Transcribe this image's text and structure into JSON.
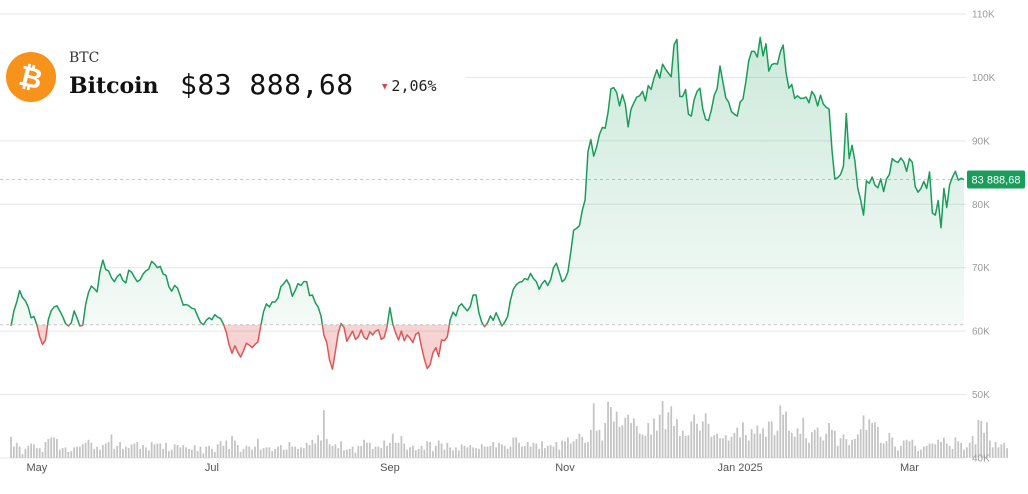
{
  "header": {
    "ticker": "BTC",
    "name": "Bitcoin",
    "price": "$83 888,68",
    "change": "2,06%",
    "change_direction": "down",
    "logo_color": "#F7931A",
    "logo_icon": "bitcoin-icon"
  },
  "colors": {
    "up_line": "#1a9c5b",
    "down_line": "#e05656",
    "up_fill": "#1a9c5b",
    "down_fill": "#e05656",
    "volume": "#c4c4c4",
    "grid": "#e6e6e6",
    "tag_bg": "#1a9c5b"
  },
  "chart_data": {
    "type": "line",
    "series": [
      {
        "values": [
          60.8,
          63.2,
          64.6,
          66.4,
          65.3,
          64.8,
          63.8,
          62.1,
          62.3,
          61.0,
          59.1,
          57.9,
          58.6,
          61.8,
          63.2,
          63.8,
          64.0,
          63.2,
          62.3,
          61.2,
          60.8,
          61.3,
          63.2,
          62.1,
          60.8,
          60.9,
          64.2,
          66.1,
          67.1,
          66.7,
          66.2,
          69.4,
          71.2,
          69.7,
          69.5,
          68.4,
          67.8,
          68.6,
          69.0,
          68.0,
          67.6,
          69.6,
          69.3,
          68.5,
          67.8,
          68.1,
          69.0,
          69.5,
          69.8,
          71.0,
          70.6,
          70.0,
          70.2,
          69.0,
          68.8,
          67.0,
          66.3,
          67.2,
          66.8,
          65.5,
          64.1,
          64.2,
          64.0,
          63.6,
          63.5,
          62.4,
          61.4,
          61.0,
          61.7,
          62.1,
          61.8,
          62.6,
          62.2,
          62.0,
          61.1,
          59.8,
          57.8,
          56.5,
          57.7,
          56.7,
          55.9,
          56.9,
          58.1,
          57.8,
          57.4,
          57.9,
          58.3,
          60.8,
          63.1,
          64.3,
          63.8,
          64.6,
          64.6,
          65.2,
          67.0,
          67.5,
          68.1,
          67.3,
          65.5,
          66.4,
          67.5,
          67.2,
          67.8,
          67.8,
          65.6,
          65.7,
          64.5,
          63.8,
          62.4,
          59.4,
          58.2,
          55.4,
          54.0,
          56.8,
          59.7,
          61.2,
          60.6,
          58.4,
          59.2,
          60.0,
          58.7,
          59.1,
          60.2,
          59.0,
          58.7,
          59.9,
          59.4,
          60.0,
          60.2,
          58.7,
          59.0,
          60.7,
          63.7,
          61.1,
          59.7,
          58.6,
          60.0,
          58.5,
          59.4,
          58.9,
          58.2,
          59.5,
          59.8,
          57.5,
          55.6,
          54.1,
          54.7,
          56.6,
          57.4,
          56.0,
          58.6,
          58.5,
          59.1,
          61.8,
          63.0,
          62.4,
          63.9,
          64.3,
          63.7,
          63.2,
          63.9,
          65.7,
          65.7,
          62.9,
          61.4,
          60.7,
          61.3,
          62.4,
          61.7,
          62.9,
          61.9,
          60.8,
          61.4,
          62.3,
          64.9,
          66.6,
          67.3,
          67.7,
          67.8,
          68.3,
          68.1,
          69.1,
          68.3,
          67.8,
          66.6,
          67.5,
          68.0,
          67.2,
          68.1,
          70.0,
          70.7,
          69.3,
          67.8,
          68.2,
          69.3,
          72.4,
          75.9,
          76.2,
          76.6,
          79.0,
          80.7,
          88.3,
          90.2,
          87.6,
          89.0,
          91.0,
          92.1,
          92.0,
          94.5,
          98.2,
          98.4,
          97.6,
          95.5,
          97.3,
          95.8,
          92.2,
          95.0,
          96.0,
          96.9,
          97.1,
          97.8,
          96.3,
          98.7,
          98.1,
          99.9,
          101.2,
          99.9,
          102.1,
          101.3,
          100.7,
          100.1,
          105.2,
          106.0,
          97.0,
          97.0,
          98.1,
          94.2,
          93.9,
          96.5,
          97.8,
          98.3,
          95.0,
          93.4,
          93.2,
          94.9,
          97.2,
          98.2,
          101.8,
          99.3,
          96.8,
          96.1,
          94.6,
          94.2,
          93.9,
          96.1,
          96.6,
          99.3,
          102.6,
          104.1,
          104.1,
          103.2,
          106.3,
          103.4,
          105.3,
          101.0,
          102.0,
          102.2,
          102.1,
          104.0,
          105.1,
          100.8,
          98.3,
          98.9,
          96.7,
          97.1,
          96.7,
          96.7,
          96.9,
          96.0,
          97.8,
          97.1,
          95.5,
          97.2,
          95.8,
          95.3,
          95.0,
          88.6,
          84.0,
          84.2,
          84.7,
          86.0,
          94.3,
          87.2,
          89.3,
          86.8,
          82.5,
          80.7,
          78.3,
          83.7,
          83.3,
          84.3,
          83.0,
          82.6,
          84.0,
          82.0,
          84.0,
          84.7,
          87.2,
          86.8,
          86.6,
          87.3,
          86.7,
          85.2,
          87.2,
          86.6,
          82.8,
          81.9,
          82.5,
          83.6,
          82.5,
          85.1,
          78.6,
          78.3,
          80.6,
          76.3,
          82.5,
          79.5,
          83.1,
          84.3,
          85.2,
          83.8,
          84.1,
          83.9
        ]
      }
    ],
    "volume": [
      0.28,
      0.15,
      0.2,
      0.15,
      0.05,
      0.12,
      0.16,
      0.19,
      0.18,
      0.13,
      0.13,
      0.08,
      0.21,
      0.25,
      0.27,
      0.27,
      0.25,
      0.11,
      0.13,
      0.14,
      0.08,
      0.09,
      0.14,
      0.15,
      0.15,
      0.18,
      0.2,
      0.24,
      0.2,
      0.12,
      0.15,
      0.11,
      0.17,
      0.19,
      0.21,
      0.31,
      0.12,
      0.16,
      0.21,
      0.12,
      0.15,
      0.13,
      0.18,
      0.19,
      0.21,
      0.12,
      0.17,
      0.14,
      0.1,
      0.21,
      0.18,
      0.19,
      0.19,
      0.12,
      0.2,
      0.09,
      0.11,
      0.18,
      0.17,
      0.14,
      0.17,
      0.14,
      0.12,
      0.11,
      0.17,
      0.09,
      0.15,
      0.06,
      0.15,
      0.16,
      0.12,
      0.08,
      0.18,
      0.22,
      0.16,
      0.23,
      0.12,
      0.29,
      0.23,
      0.17,
      0.08,
      0.12,
      0.16,
      0.15,
      0.11,
      0.15,
      0.25,
      0.11,
      0.13,
      0.14,
      0.14,
      0.09,
      0.12,
      0.15,
      0.17,
      0.11,
      0.11,
      0.21,
      0.15,
      0.15,
      0.12,
      0.14,
      0.13,
      0.2,
      0.17,
      0.24,
      0.19,
      0.3,
      0.23,
      0.63,
      0.25,
      0.18,
      0.16,
      0.18,
      0.13,
      0.22,
      0.1,
      0.11,
      0.12,
      0.15,
      0.07,
      0.16,
      0.16,
      0.24,
      0.2,
      0.2,
      0.12,
      0.15,
      0.15,
      0.13,
      0.23,
      0.16,
      0.2,
      0.32,
      0.2,
      0.2,
      0.29,
      0.19,
      0.11,
      0.14,
      0.16,
      0.1,
      0.12,
      0.16,
      0.11,
      0.22,
      0.21,
      0.09,
      0.16,
      0.23,
      0.19,
      0.11,
      0.2,
      0.14,
      0.1,
      0.14,
      0.1,
      0.18,
      0.16,
      0.14,
      0.17,
      0.14,
      0.13,
      0.12,
      0.18,
      0.15,
      0.15,
      0.16,
      0.21,
      0.14,
      0.2,
      0.18,
      0.16,
      0.12,
      0.15,
      0.27,
      0.27,
      0.2,
      0.15,
      0.16,
      0.21,
      0.15,
      0.2,
      0.19,
      0.12,
      0.22,
      0.13,
      0.16,
      0.17,
      0.15,
      0.21,
      0.11,
      0.23,
      0.22,
      0.27,
      0.19,
      0.22,
      0.25,
      0.32,
      0.28,
      0.2,
      0.21,
      0.37,
      0.72,
      0.36,
      0.37,
      0.23,
      0.46,
      0.74,
      0.67,
      0.48,
      0.61,
      0.41,
      0.43,
      0.53,
      0.57,
      0.46,
      0.52,
      0.42,
      0.32,
      0.31,
      0.29,
      0.46,
      0.31,
      0.52,
      0.36,
      0.57,
      0.75,
      0.38,
      0.6,
      0.68,
      0.42,
      0.51,
      0.29,
      0.36,
      0.29,
      0.3,
      0.48,
      0.57,
      0.45,
      0.36,
      0.48,
      0.59,
      0.45,
      0.28,
      0.3,
      0.32,
      0.26,
      0.26,
      0.3,
      0.23,
      0.28,
      0.33,
      0.4,
      0.27,
      0.47,
      0.3,
      0.23,
      0.38,
      0.32,
      0.43,
      0.32,
      0.39,
      0.28,
      0.48,
      0.48,
      0.3,
      0.36,
      0.69,
      0.57,
      0.61,
      0.36,
      0.33,
      0.28,
      0.39,
      0.32,
      0.53,
      0.26,
      0.2,
      0.34,
      0.37,
      0.4,
      0.28,
      0.23,
      0.32,
      0.46,
      0.37,
      0.36,
      0.16,
      0.26,
      0.31,
      0.25,
      0.17,
      0.24,
      0.25,
      0.31,
      0.38,
      0.56,
      0.37,
      0.51,
      0.46,
      0.47,
      0.41,
      0.2,
      0.19,
      0.22,
      0.33,
      0.27,
      0.15,
      0.1,
      0.16,
      0.23,
      0.24,
      0.22,
      0.24,
      0.16,
      0.09,
      0.11,
      0.15,
      0.16,
      0.19,
      0.19,
      0.18,
      0.24,
      0.21,
      0.27,
      0.19,
      0.16,
      0.12,
      0.27,
      0.22,
      0.2,
      0.11,
      0.14,
      0.2,
      0.29,
      0.18,
      0.5,
      0.49,
      0.33,
      0.47,
      0.23,
      0.14,
      0.21,
      0.14,
      0.18,
      0.2,
      0.13
    ],
    "baseline": 61,
    "last_value": 83.9,
    "last_label": "83 888,68",
    "ylim": [
      40,
      110
    ],
    "y_ticks": [
      {
        "value": 110,
        "label": "110K"
      },
      {
        "value": 100,
        "label": "100K"
      },
      {
        "value": 90,
        "label": "90K"
      },
      {
        "value": 80,
        "label": "80K"
      },
      {
        "value": 70,
        "label": "70K"
      },
      {
        "value": 60,
        "label": "60K"
      },
      {
        "value": 50,
        "label": "50K"
      },
      {
        "value": 40,
        "label": "40K"
      }
    ],
    "x_ticks": [
      {
        "index": 9,
        "label": "May"
      },
      {
        "index": 70,
        "label": "Jul"
      },
      {
        "index": 132,
        "label": "Sep"
      },
      {
        "index": 193,
        "label": "Nov"
      },
      {
        "index": 254,
        "label": "Jan 2025"
      },
      {
        "index": 313,
        "label": "Mar"
      }
    ],
    "grid": true
  }
}
